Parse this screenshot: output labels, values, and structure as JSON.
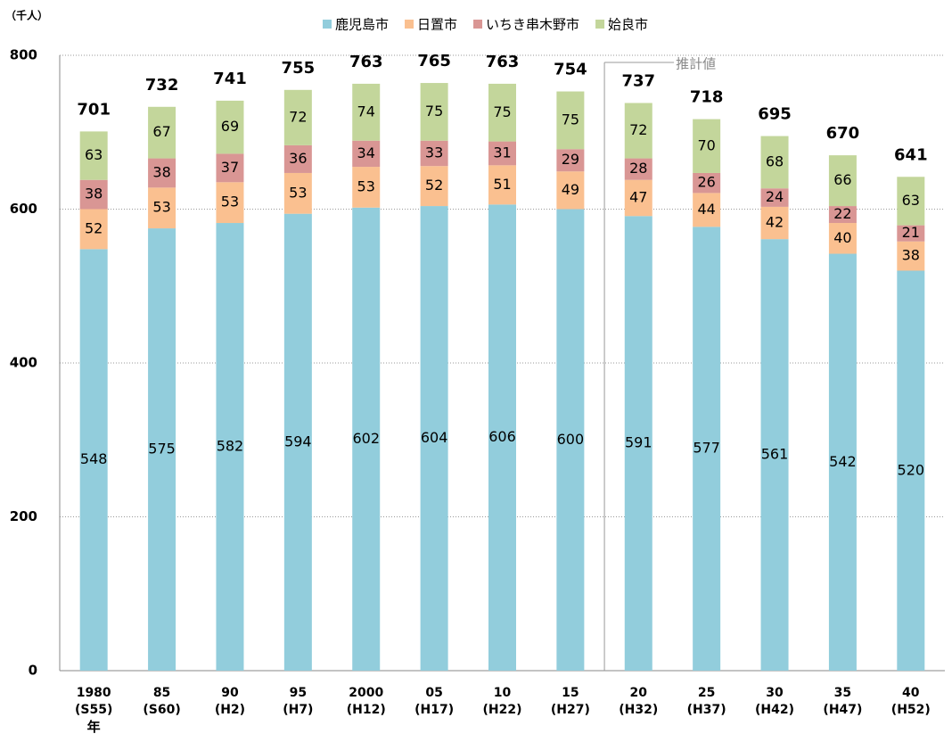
{
  "chart_data": {
    "type": "stacked_bar",
    "y_unit": "（千人）",
    "x_label": "年",
    "annotation": "推計値",
    "categories": [
      "1980\n(S55)",
      "85\n(S60)",
      "90\n(H2)",
      "95\n(H7)",
      "2000\n(H12)",
      "05\n(H17)",
      "10\n(H22)",
      "15\n(H27)",
      "20\n(H32)",
      "25\n(H37)",
      "30\n(H42)",
      "35\n(H47)",
      "40\n(H52)"
    ],
    "series": [
      {
        "name": "鹿児島市",
        "color": "#92cddc",
        "values": [
          548,
          575,
          582,
          594,
          602,
          604,
          606,
          600,
          591,
          577,
          561,
          542,
          520
        ]
      },
      {
        "name": "日置市",
        "color": "#fac090",
        "values": [
          52,
          53,
          53,
          53,
          53,
          52,
          51,
          49,
          47,
          44,
          42,
          40,
          38
        ]
      },
      {
        "name": "いちき串木野市",
        "color": "#d99694",
        "values": [
          38,
          38,
          37,
          36,
          34,
          33,
          31,
          29,
          28,
          26,
          24,
          22,
          21
        ]
      },
      {
        "name": "姶良市",
        "color": "#c3d69b",
        "values": [
          63,
          67,
          69,
          72,
          74,
          75,
          75,
          75,
          72,
          70,
          68,
          66,
          63
        ]
      }
    ],
    "totals": [
      701,
      732,
      741,
      755,
      763,
      765,
      763,
      754,
      737,
      718,
      695,
      670,
      641
    ],
    "ylim": [
      0,
      800
    ],
    "yticks": [
      0,
      200,
      400,
      600,
      800
    ],
    "grid": true
  }
}
